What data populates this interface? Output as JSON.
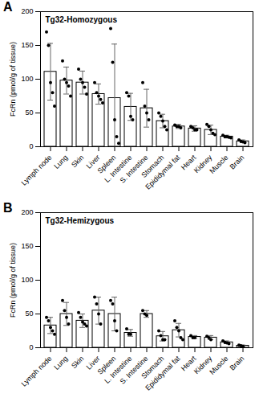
{
  "chart_data": [
    {
      "type": "bar",
      "panel": "A",
      "title": "Tg32-Homozygous",
      "y_label": "FcRn (pmol/g of tissue)",
      "categories": [
        "Lymph node",
        "Lung",
        "Skin",
        "Liver",
        "Spleen",
        "L. Intestine",
        "S. Intestine",
        "Stomach",
        "Epididymal fat",
        "Heart",
        "Kidney",
        "Muscle",
        "Brain"
      ],
      "values": [
        111,
        98,
        95,
        78,
        72,
        59,
        57,
        38,
        30,
        27,
        25,
        15,
        8
      ],
      "errors": [
        42,
        20,
        17,
        15,
        80,
        20,
        28,
        10,
        3,
        4,
        7,
        2,
        2
      ],
      "points": [
        [
          170,
          150,
          95,
          80,
          60
        ],
        [
          127,
          100,
          95,
          90,
          75
        ],
        [
          115,
          100,
          95,
          88,
          78
        ],
        [
          95,
          80,
          75,
          70,
          65
        ],
        [
          175,
          125,
          40,
          15,
          5
        ],
        [
          80,
          75,
          45,
          40
        ],
        [
          95,
          60,
          50,
          40
        ],
        [
          50,
          45,
          38,
          30,
          25
        ],
        [
          32,
          30,
          30,
          28
        ],
        [
          30,
          28,
          25,
          25
        ],
        [
          33,
          30,
          25,
          20,
          18
        ],
        [
          17,
          15,
          15,
          14,
          13
        ],
        [
          10,
          8,
          7,
          6
        ]
      ],
      "color": "#ffffff",
      "ylim": [
        0,
        200
      ],
      "yticks": [
        0,
        50,
        100,
        150,
        200
      ]
    },
    {
      "type": "bar",
      "panel": "B",
      "title": "Tg32-Hemizygous",
      "y_label": "FcRn (pmol/g of tissue)",
      "categories": [
        "Lymph node",
        "Lung",
        "Skin",
        "Liver",
        "Spleen",
        "L. Intestine",
        "S. Intestine",
        "Stomach",
        "Epididymal fat",
        "Heart",
        "Kidney",
        "Muscle",
        "Brain"
      ],
      "values": [
        33,
        50,
        40,
        55,
        50,
        22,
        50,
        17,
        26,
        16,
        15,
        8,
        3
      ],
      "errors": [
        12,
        17,
        10,
        20,
        25,
        5,
        5,
        7,
        10,
        2,
        3,
        2,
        1
      ],
      "points": [
        [
          45,
          40,
          30,
          25,
          20
        ],
        [
          70,
          55,
          45,
          35
        ],
        [
          52,
          45,
          38,
          35,
          32
        ],
        [
          75,
          65,
          50,
          35
        ],
        [
          70,
          65,
          40,
          25
        ],
        [
          28,
          20,
          20
        ],
        [
          55,
          50,
          48
        ],
        [
          25,
          18,
          12,
          12
        ],
        [
          40,
          30,
          25,
          15,
          12
        ],
        [
          18,
          15,
          15
        ],
        [
          17,
          15,
          12
        ],
        [
          10,
          8,
          7,
          6
        ],
        [
          4,
          3,
          2
        ]
      ],
      "color": "#ffffff",
      "ylim": [
        0,
        200
      ],
      "yticks": [
        0,
        50,
        100,
        150,
        200
      ]
    }
  ]
}
